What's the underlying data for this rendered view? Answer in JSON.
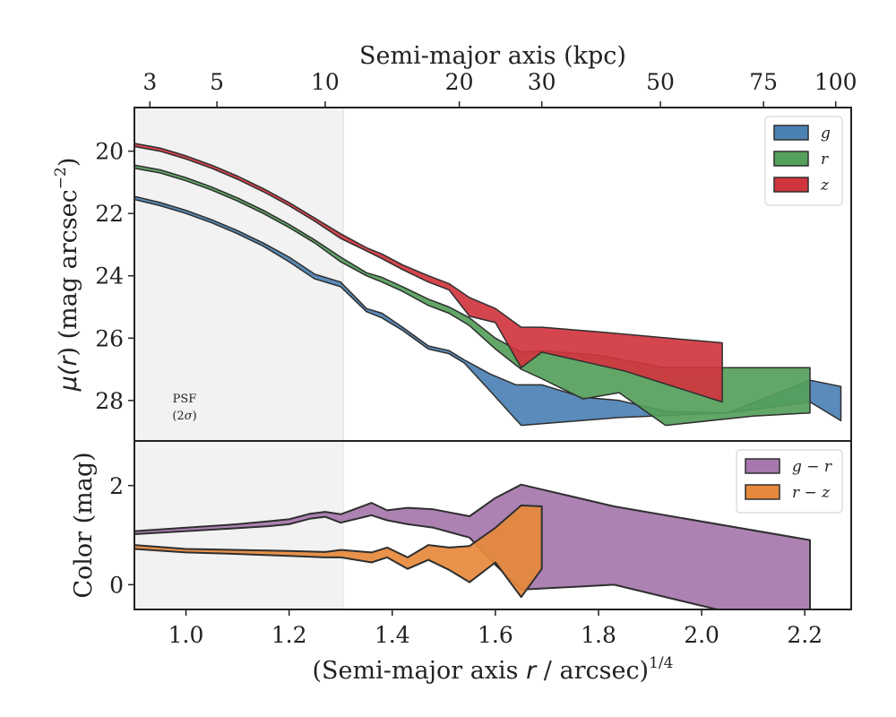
{
  "colors": {
    "g": "#4c81b4",
    "r": "#55a05a",
    "z": "#d0353e",
    "gr": "#a677ad",
    "rz": "#e6893c",
    "psf_shade": "#f2f2f2",
    "edge": "#2f2f2f"
  },
  "chart_data": [
    {
      "type": "area",
      "title": "",
      "top_axis": {
        "label": "Semi-major axis (kpc)",
        "ticks": [
          3,
          5,
          10,
          20,
          30,
          50,
          75,
          100
        ],
        "tick_labels": [
          "3",
          "5",
          "10",
          "20",
          "30",
          "50",
          "75",
          "100"
        ],
        "tick_x_positions": [
          0.93,
          1.06,
          1.27,
          1.53,
          1.69,
          1.92,
          2.12,
          2.26
        ]
      },
      "xlabel_parts": [
        "(Semi-major axis ",
        "r",
        " / arcsec)",
        "1/4"
      ],
      "ylabel_parts": [
        "μ(",
        "r",
        ") (mag arcsec",
        "−2",
        ")"
      ],
      "xlim": [
        0.9,
        2.29
      ],
      "ylim": [
        29.3,
        18.6
      ],
      "y_inverted": true,
      "yticks": [
        20,
        22,
        24,
        26,
        28
      ],
      "psf_region": {
        "x": [
          0.9,
          1.305
        ],
        "label": "PSF",
        "sublabel_parts": [
          "(2",
          "σ",
          ")"
        ]
      },
      "legend": {
        "position": "top-right",
        "entries": [
          "g",
          "r",
          "z"
        ]
      },
      "series": [
        {
          "name": "g",
          "upper": [
            [
              0.9,
              21.45
            ],
            [
              0.95,
              21.65
            ],
            [
              1.0,
              21.9
            ],
            [
              1.05,
              22.2
            ],
            [
              1.1,
              22.55
            ],
            [
              1.15,
              22.95
            ],
            [
              1.2,
              23.4
            ],
            [
              1.25,
              23.95
            ],
            [
              1.3,
              24.2
            ],
            [
              1.35,
              25.05
            ],
            [
              1.38,
              25.2
            ],
            [
              1.42,
              25.65
            ],
            [
              1.47,
              26.25
            ],
            [
              1.51,
              26.4
            ],
            [
              1.54,
              26.7
            ],
            [
              1.59,
              27.15
            ],
            [
              1.64,
              27.5
            ],
            [
              1.69,
              27.5
            ],
            [
              1.77,
              27.9
            ],
            [
              1.84,
              28.0
            ],
            [
              1.93,
              28.35
            ],
            [
              2.05,
              28.4
            ],
            [
              2.21,
              27.35
            ],
            [
              2.27,
              27.55
            ]
          ],
          "lower": [
            [
              0.9,
              21.55
            ],
            [
              0.95,
              21.75
            ],
            [
              1.0,
              22.0
            ],
            [
              1.05,
              22.3
            ],
            [
              1.1,
              22.65
            ],
            [
              1.15,
              23.05
            ],
            [
              1.2,
              23.55
            ],
            [
              1.25,
              24.1
            ],
            [
              1.3,
              24.35
            ],
            [
              1.35,
              25.15
            ],
            [
              1.38,
              25.35
            ],
            [
              1.42,
              25.75
            ],
            [
              1.47,
              26.35
            ],
            [
              1.51,
              26.5
            ],
            [
              1.54,
              26.8
            ],
            [
              1.59,
              27.7
            ],
            [
              1.65,
              28.8
            ],
            [
              1.84,
              28.55
            ],
            [
              2.05,
              28.4
            ],
            [
              2.21,
              28.05
            ],
            [
              2.27,
              28.65
            ]
          ]
        },
        {
          "name": "r",
          "upper": [
            [
              0.9,
              20.45
            ],
            [
              0.95,
              20.6
            ],
            [
              1.0,
              20.85
            ],
            [
              1.05,
              21.15
            ],
            [
              1.1,
              21.5
            ],
            [
              1.15,
              21.9
            ],
            [
              1.2,
              22.35
            ],
            [
              1.25,
              22.85
            ],
            [
              1.3,
              23.4
            ],
            [
              1.35,
              23.9
            ],
            [
              1.38,
              24.05
            ],
            [
              1.42,
              24.35
            ],
            [
              1.47,
              24.75
            ],
            [
              1.51,
              25.0
            ],
            [
              1.55,
              25.35
            ],
            [
              1.6,
              26.0
            ],
            [
              1.65,
              26.45
            ],
            [
              1.69,
              26.4
            ],
            [
              1.8,
              26.55
            ],
            [
              1.93,
              26.95
            ],
            [
              2.1,
              26.95
            ],
            [
              2.21,
              26.95
            ]
          ],
          "lower": [
            [
              0.9,
              20.55
            ],
            [
              0.95,
              20.7
            ],
            [
              1.0,
              20.95
            ],
            [
              1.05,
              21.25
            ],
            [
              1.1,
              21.6
            ],
            [
              1.15,
              22.0
            ],
            [
              1.2,
              22.45
            ],
            [
              1.25,
              22.95
            ],
            [
              1.3,
              23.55
            ],
            [
              1.35,
              24.0
            ],
            [
              1.38,
              24.2
            ],
            [
              1.42,
              24.5
            ],
            [
              1.47,
              24.95
            ],
            [
              1.51,
              25.2
            ],
            [
              1.55,
              25.6
            ],
            [
              1.6,
              26.35
            ],
            [
              1.65,
              27.0
            ],
            [
              1.69,
              27.3
            ],
            [
              1.77,
              27.95
            ],
            [
              1.84,
              27.75
            ],
            [
              1.93,
              28.8
            ],
            [
              2.1,
              28.5
            ],
            [
              2.21,
              28.4
            ]
          ]
        },
        {
          "name": "z",
          "upper": [
            [
              0.9,
              19.75
            ],
            [
              0.95,
              19.9
            ],
            [
              1.0,
              20.15
            ],
            [
              1.05,
              20.45
            ],
            [
              1.1,
              20.8
            ],
            [
              1.15,
              21.2
            ],
            [
              1.2,
              21.65
            ],
            [
              1.25,
              22.15
            ],
            [
              1.3,
              22.65
            ],
            [
              1.35,
              23.1
            ],
            [
              1.38,
              23.3
            ],
            [
              1.42,
              23.65
            ],
            [
              1.47,
              24.0
            ],
            [
              1.51,
              24.25
            ],
            [
              1.55,
              24.7
            ],
            [
              1.6,
              25.05
            ],
            [
              1.65,
              25.65
            ],
            [
              1.69,
              25.65
            ],
            [
              1.8,
              25.8
            ],
            [
              2.04,
              26.15
            ]
          ],
          "lower": [
            [
              0.9,
              19.85
            ],
            [
              0.95,
              20.0
            ],
            [
              1.0,
              20.25
            ],
            [
              1.05,
              20.55
            ],
            [
              1.1,
              20.9
            ],
            [
              1.15,
              21.3
            ],
            [
              1.2,
              21.75
            ],
            [
              1.25,
              22.25
            ],
            [
              1.3,
              22.8
            ],
            [
              1.35,
              23.2
            ],
            [
              1.38,
              23.45
            ],
            [
              1.42,
              23.8
            ],
            [
              1.47,
              24.2
            ],
            [
              1.51,
              24.45
            ],
            [
              1.55,
              25.3
            ],
            [
              1.6,
              25.5
            ],
            [
              1.65,
              26.95
            ],
            [
              1.69,
              26.45
            ],
            [
              1.85,
              27.05
            ],
            [
              2.04,
              28.05
            ]
          ]
        }
      ]
    },
    {
      "type": "area",
      "ylabel": "Color (mag)",
      "xlim": [
        0.9,
        2.29
      ],
      "ylim": [
        -0.5,
        2.9
      ],
      "yticks": [
        0,
        2
      ],
      "xticks": [
        1.0,
        1.2,
        1.4,
        1.6,
        1.8,
        2.0,
        2.2
      ],
      "xtick_labels": [
        "1.0",
        "1.2",
        "1.4",
        "1.6",
        "1.8",
        "2.0",
        "2.2"
      ],
      "legend": {
        "position": "top-right",
        "entries": [
          "g − r",
          "r − z"
        ]
      },
      "series": [
        {
          "name": "g − r",
          "upper": [
            [
              0.9,
              1.08
            ],
            [
              1.0,
              1.15
            ],
            [
              1.1,
              1.22
            ],
            [
              1.16,
              1.28
            ],
            [
              1.2,
              1.32
            ],
            [
              1.24,
              1.43
            ],
            [
              1.27,
              1.47
            ],
            [
              1.3,
              1.42
            ],
            [
              1.36,
              1.65
            ],
            [
              1.39,
              1.5
            ],
            [
              1.43,
              1.55
            ],
            [
              1.48,
              1.52
            ],
            [
              1.55,
              1.38
            ],
            [
              1.6,
              1.75
            ],
            [
              1.65,
              2.02
            ],
            [
              1.83,
              1.58
            ],
            [
              2.21,
              0.9
            ]
          ],
          "lower": [
            [
              0.9,
              1.02
            ],
            [
              1.0,
              1.08
            ],
            [
              1.1,
              1.14
            ],
            [
              1.16,
              1.18
            ],
            [
              1.2,
              1.22
            ],
            [
              1.24,
              1.33
            ],
            [
              1.27,
              1.37
            ],
            [
              1.3,
              1.25
            ],
            [
              1.36,
              1.4
            ],
            [
              1.39,
              1.3
            ],
            [
              1.43,
              1.22
            ],
            [
              1.48,
              1.15
            ],
            [
              1.55,
              0.95
            ],
            [
              1.6,
              0.4
            ],
            [
              1.65,
              -0.1
            ],
            [
              1.83,
              0.0
            ],
            [
              2.05,
              -0.55
            ],
            [
              2.21,
              -0.55
            ]
          ]
        },
        {
          "name": "r − z",
          "upper": [
            [
              0.9,
              0.8
            ],
            [
              1.0,
              0.72
            ],
            [
              1.1,
              0.7
            ],
            [
              1.2,
              0.68
            ],
            [
              1.27,
              0.66
            ],
            [
              1.3,
              0.7
            ],
            [
              1.36,
              0.65
            ],
            [
              1.39,
              0.75
            ],
            [
              1.43,
              0.55
            ],
            [
              1.47,
              0.8
            ],
            [
              1.51,
              0.75
            ],
            [
              1.55,
              0.78
            ],
            [
              1.6,
              1.15
            ],
            [
              1.65,
              1.6
            ],
            [
              1.69,
              1.58
            ]
          ],
          "lower": [
            [
              0.9,
              0.72
            ],
            [
              1.0,
              0.65
            ],
            [
              1.1,
              0.62
            ],
            [
              1.2,
              0.58
            ],
            [
              1.27,
              0.55
            ],
            [
              1.3,
              0.55
            ],
            [
              1.36,
              0.45
            ],
            [
              1.39,
              0.55
            ],
            [
              1.43,
              0.32
            ],
            [
              1.47,
              0.5
            ],
            [
              1.51,
              0.3
            ],
            [
              1.55,
              0.05
            ],
            [
              1.6,
              0.45
            ],
            [
              1.65,
              -0.25
            ],
            [
              1.69,
              0.32
            ]
          ]
        }
      ]
    }
  ]
}
